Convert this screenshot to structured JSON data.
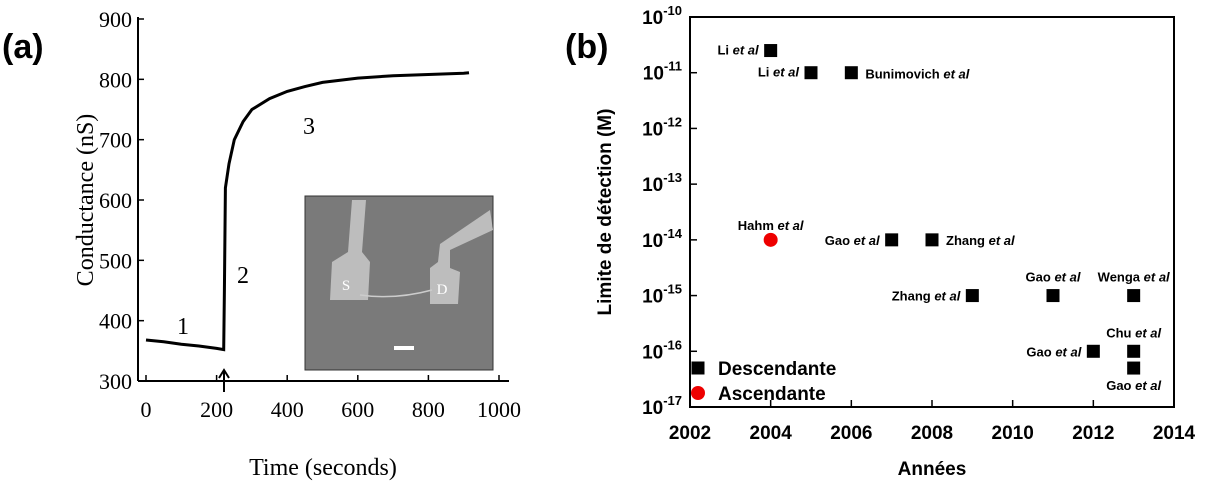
{
  "chart_data": [
    {
      "type": "line",
      "panel_label": "(a)",
      "x_label": "Time (seconds)",
      "y_label": "Conductance (nS)",
      "x": [
        0,
        50,
        100,
        150,
        200,
        220,
        222,
        225,
        235,
        250,
        275,
        300,
        350,
        400,
        450,
        500,
        600,
        700,
        800,
        900,
        915
      ],
      "values": [
        368,
        365,
        361,
        358,
        354,
        352,
        450,
        620,
        660,
        700,
        730,
        750,
        768,
        780,
        788,
        795,
        802,
        806,
        808,
        810,
        811
      ],
      "color": "#000000",
      "xlim": [
        0,
        1000
      ],
      "xticks": [
        0,
        200,
        400,
        600,
        800,
        1000
      ],
      "ylim": [
        300,
        900
      ],
      "yticks": [
        300,
        400,
        500,
        600,
        700,
        800,
        900
      ],
      "annotations": [
        "1",
        "2",
        "3"
      ],
      "inset_labels": [
        "S",
        "D"
      ]
    },
    {
      "type": "scatter",
      "panel_label": "(b)",
      "x_label": "Années",
      "y_label": "Limite de détection (M)",
      "log_y": true,
      "legend": "lower left",
      "xlim": [
        2002,
        2014
      ],
      "xticks": [
        2002,
        2004,
        2006,
        2008,
        2010,
        2012,
        2014
      ],
      "ylim": [
        1e-17,
        1e-10
      ],
      "yticks": [
        {
          "value": 1e-17,
          "label": "10-17"
        },
        {
          "value": 1e-16,
          "label": "10-16"
        },
        {
          "value": 1e-15,
          "label": "10-15"
        },
        {
          "value": 1e-14,
          "label": "10-14"
        },
        {
          "value": 1e-13,
          "label": "10-13"
        },
        {
          "value": 1e-12,
          "label": "10-12"
        },
        {
          "value": 1e-11,
          "label": "10-11"
        },
        {
          "value": 1e-10,
          "label": "10-10"
        }
      ],
      "series": [
        {
          "name": "Descendante",
          "color": "#000000",
          "marker": "square",
          "x": [
            2004,
            2005,
            2006,
            2007,
            2008,
            2009,
            2011,
            2013,
            2012,
            2013,
            2013
          ],
          "values": [
            2.5e-11,
            1e-11,
            1e-11,
            1e-14,
            1e-14,
            1e-15,
            1e-15,
            1e-15,
            1e-16,
            1e-16,
            5e-17
          ],
          "point_labels": [
            "Li et al",
            "Li et al",
            "Bunimovich et al",
            "Gao et al",
            "Zhang et al",
            "Zhang et al",
            "Gao et al",
            "Wenga et al",
            "Gao et al",
            "Chu et al",
            "Gao et al"
          ]
        },
        {
          "name": "Ascendante",
          "color": "#ee0000",
          "marker": "circle",
          "x": [
            2004
          ],
          "values": [
            1e-14
          ],
          "point_labels": [
            "Hahm et al"
          ]
        }
      ]
    }
  ]
}
